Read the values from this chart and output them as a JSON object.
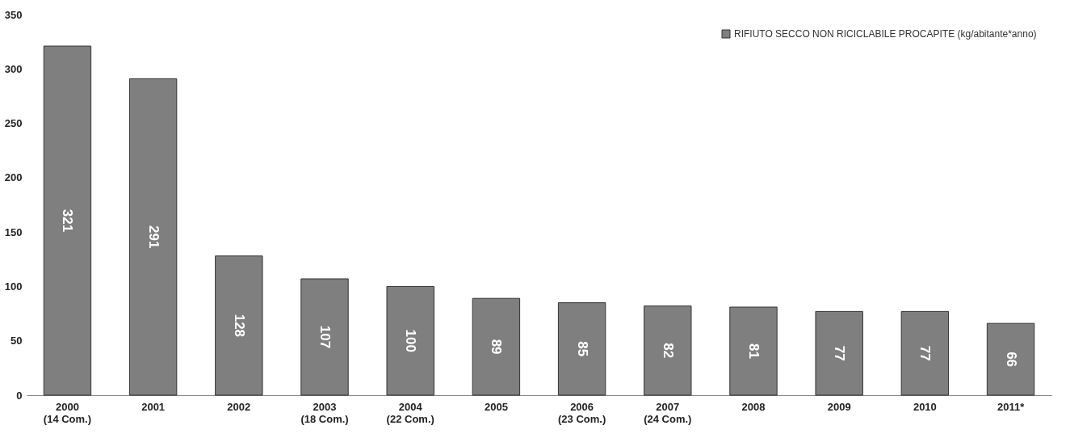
{
  "chart_data": {
    "type": "bar",
    "categories": [
      "2000\n(14 Com.)",
      "2001",
      "2002",
      "2003\n(18 Com.)",
      "2004\n(22 Com.)",
      "2005",
      "2006\n(23 Com.)",
      "2007\n(24 Com.)",
      "2008",
      "2009",
      "2010",
      "2011*"
    ],
    "series": [
      {
        "name": "RIFIUTO SECCO NON RICICLABILE PROCAPITE (kg/abitante*anno)",
        "color": "#7f7f7f",
        "values": [
          321,
          291,
          128,
          107,
          100,
          89,
          85,
          82,
          81,
          77,
          77,
          66
        ]
      }
    ],
    "ylim": [
      0,
      350
    ],
    "yticks": [
      0,
      50,
      100,
      150,
      200,
      250,
      300,
      350
    ],
    "grid": false,
    "legend": "top right",
    "data_labels": true
  }
}
